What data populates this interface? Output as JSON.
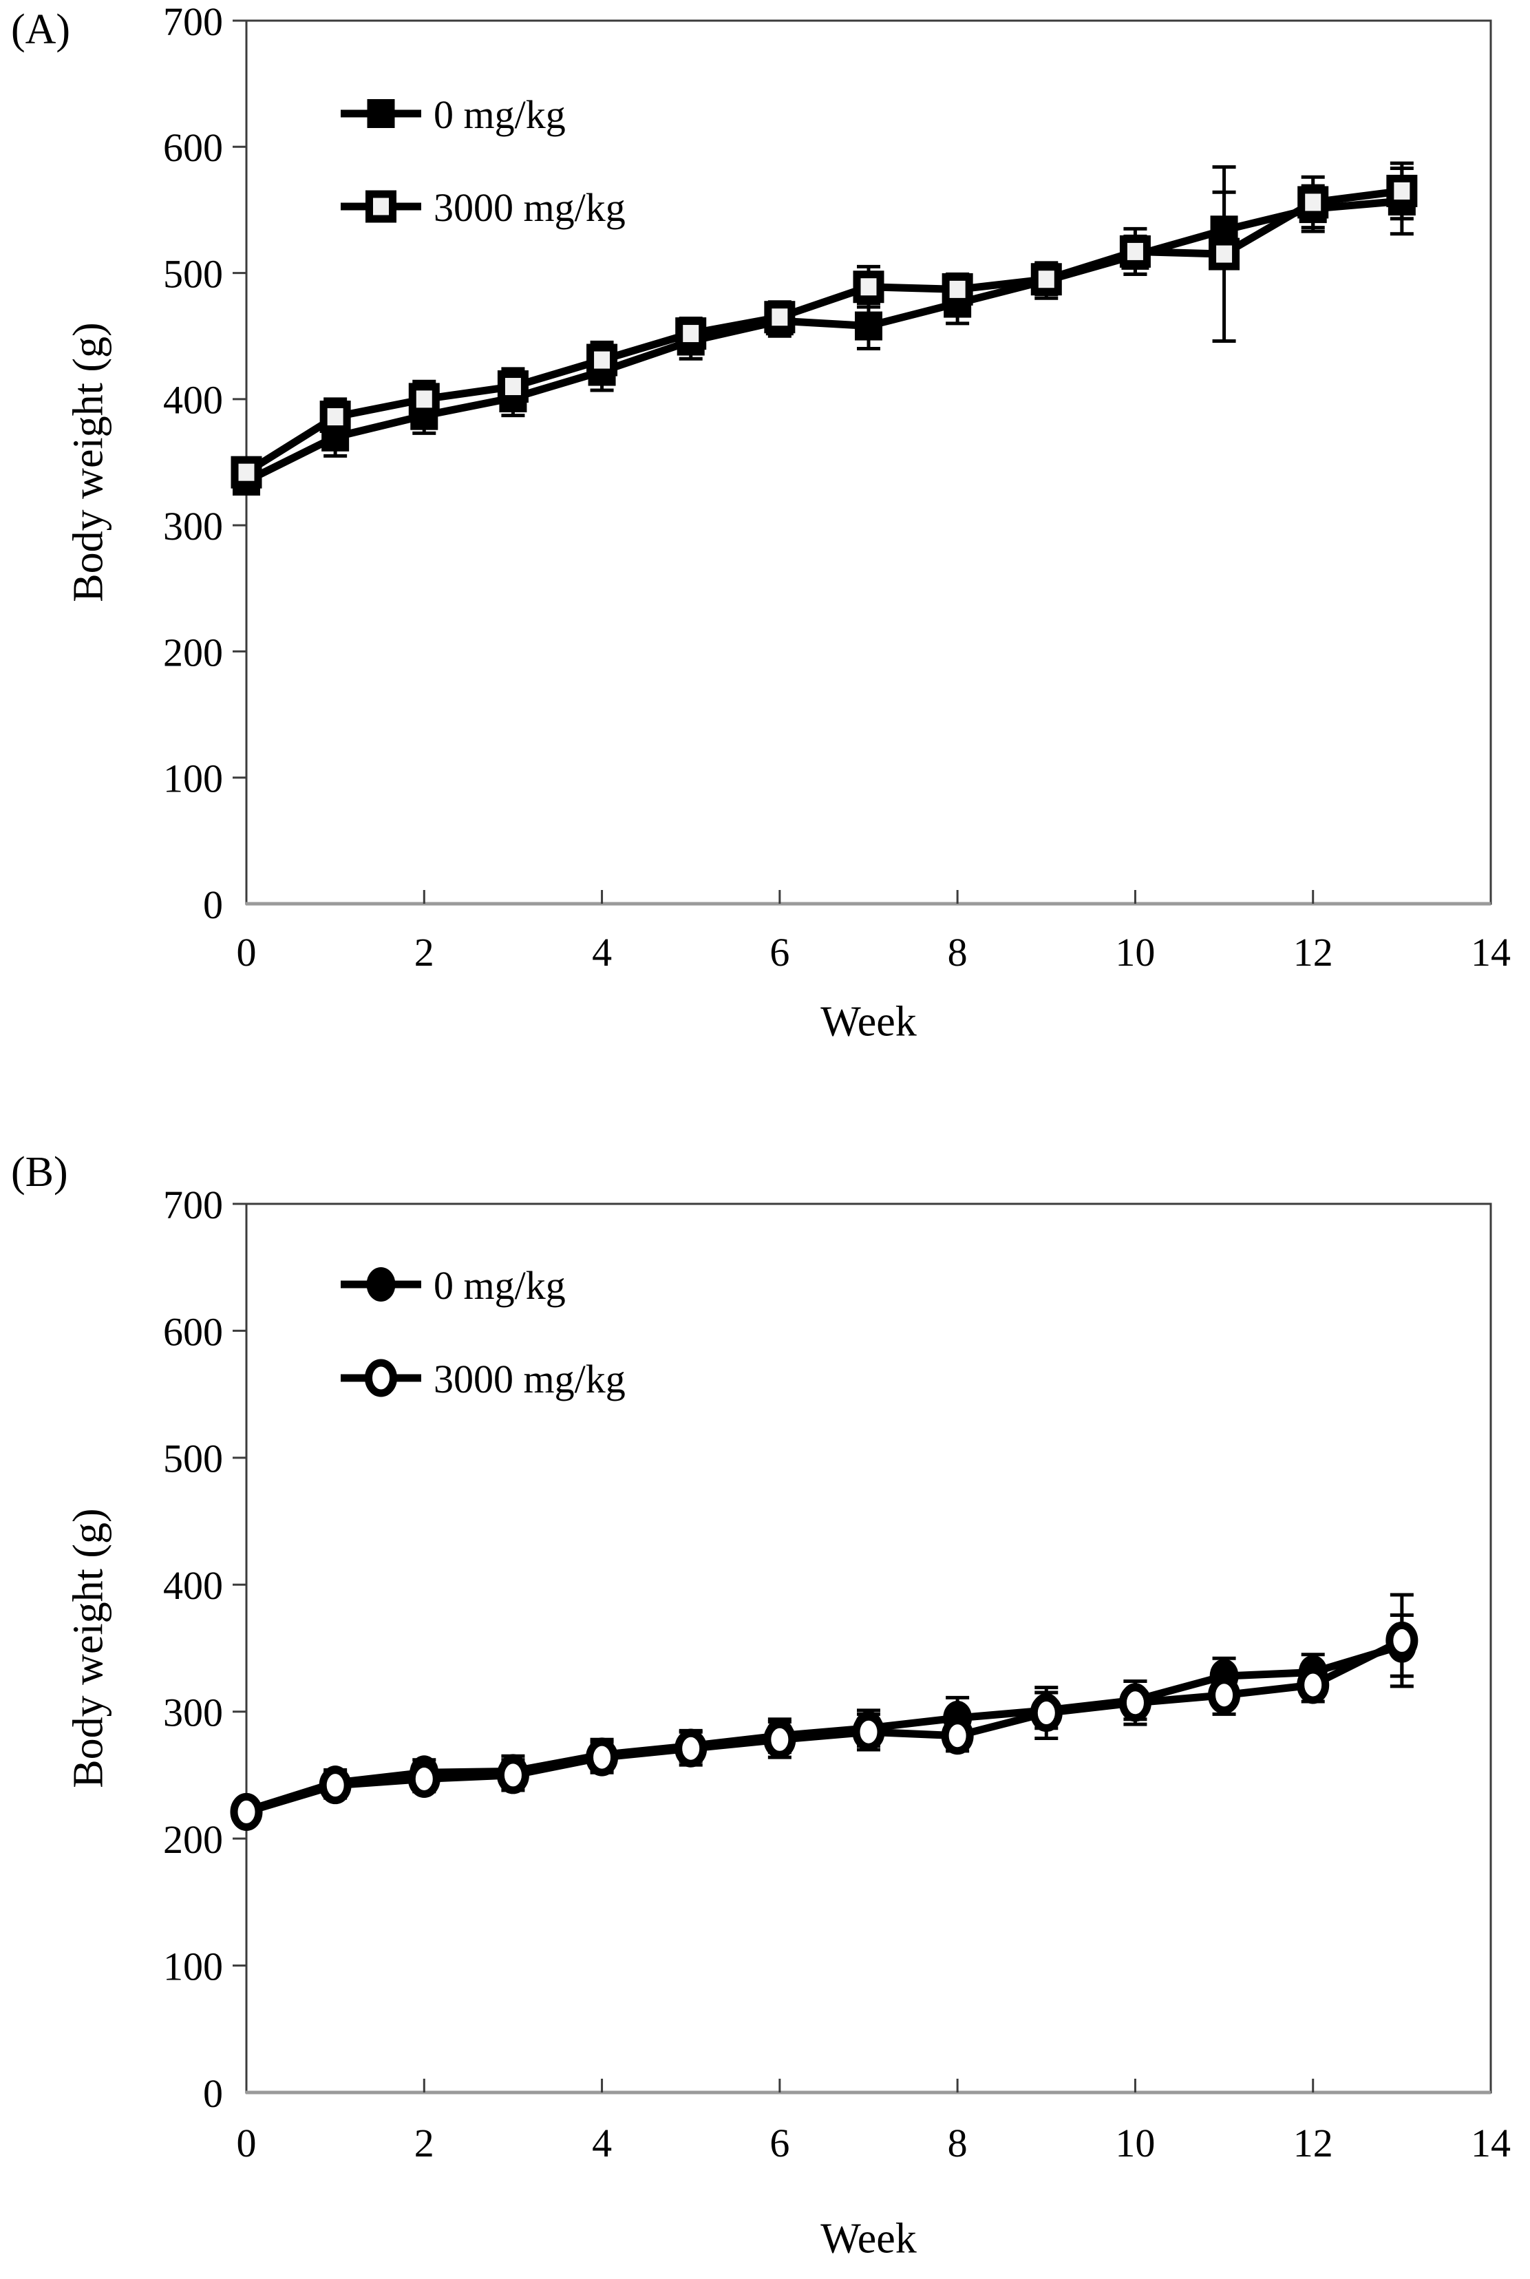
{
  "figure": {
    "description": "Two-panel line chart of body weight over 13 weeks for two dose groups",
    "background_color": "#ffffff",
    "ink_color": "#000000",
    "axis_color": "#3c3c3c",
    "axis_bottom_color": "#9a9a9a",
    "open_square_fill": "#f1f1f1",
    "open_circle_fill": "#ffffff"
  },
  "panels": [
    {
      "letter": "(A)",
      "y_axis_title": "Body weight (g)",
      "x_axis_title": "Week",
      "legend": [
        {
          "label": "0 mg/kg",
          "marker": "square-filled"
        },
        {
          "label": "3000 mg/kg",
          "marker": "square-open"
        }
      ]
    },
    {
      "letter": "(B)",
      "y_axis_title": "Body weight (g)",
      "x_axis_title": "Week",
      "legend": [
        {
          "label": "0 mg/kg",
          "marker": "circle-filled"
        },
        {
          "label": "3000 mg/kg",
          "marker": "circle-open"
        }
      ]
    }
  ],
  "chart_data": [
    {
      "type": "line",
      "title": "",
      "xlabel": "Week",
      "ylabel": "Body weight (g)",
      "xlim": [
        0,
        14
      ],
      "ylim": [
        0,
        700
      ],
      "xticks": [
        0,
        2,
        4,
        6,
        8,
        10,
        12,
        14
      ],
      "yticks": [
        0,
        100,
        200,
        300,
        400,
        500,
        600,
        700
      ],
      "grid": false,
      "legend_position": "upper-left-inside",
      "error_bars": true,
      "x": [
        0,
        1,
        2,
        3,
        4,
        5,
        6,
        7,
        8,
        9,
        10,
        11,
        12,
        13
      ],
      "series": [
        {
          "name": "0 mg/kg",
          "marker": "square-filled",
          "values": [
            335,
            370,
            387,
            401,
            422,
            446,
            462,
            458,
            476,
            494,
            514,
            534,
            551,
            557
          ],
          "errors": [
            9,
            15,
            14,
            14,
            15,
            14,
            12,
            18,
            16,
            14,
            15,
            30,
            18,
            26
          ]
        },
        {
          "name": "3000 mg/kg",
          "marker": "square-open",
          "values": [
            342,
            386,
            400,
            410,
            431,
            452,
            465,
            489,
            487,
            495,
            517,
            515,
            556,
            565
          ],
          "errors": [
            9,
            14,
            14,
            14,
            14,
            12,
            12,
            16,
            12,
            12,
            18,
            69,
            20,
            22
          ]
        }
      ]
    },
    {
      "type": "line",
      "title": "",
      "xlabel": "Week",
      "ylabel": "Body weight (g)",
      "xlim": [
        0,
        14
      ],
      "ylim": [
        0,
        700
      ],
      "xticks": [
        0,
        2,
        4,
        6,
        8,
        10,
        12,
        14
      ],
      "yticks": [
        0,
        100,
        200,
        300,
        400,
        500,
        600,
        700
      ],
      "grid": false,
      "legend_position": "upper-left-inside",
      "error_bars": true,
      "x": [
        0,
        1,
        2,
        3,
        4,
        5,
        6,
        7,
        8,
        9,
        10,
        11,
        12,
        13
      ],
      "series": [
        {
          "name": "0 mg/kg",
          "marker": "circle-filled",
          "values": [
            222,
            244,
            252,
            253,
            266,
            273,
            281,
            287,
            295,
            301,
            309,
            328,
            331,
            352
          ],
          "errors": [
            6,
            10,
            10,
            12,
            12,
            12,
            13,
            14,
            16,
            14,
            15,
            14,
            14,
            24
          ]
        },
        {
          "name": "3000 mg/kg",
          "marker": "circle-open",
          "values": [
            221,
            242,
            247,
            250,
            264,
            271,
            278,
            284,
            281,
            299,
            307,
            313,
            321,
            356
          ],
          "errors": [
            6,
            10,
            10,
            12,
            12,
            13,
            14,
            14,
            12,
            20,
            17,
            15,
            13,
            36
          ]
        }
      ]
    }
  ]
}
